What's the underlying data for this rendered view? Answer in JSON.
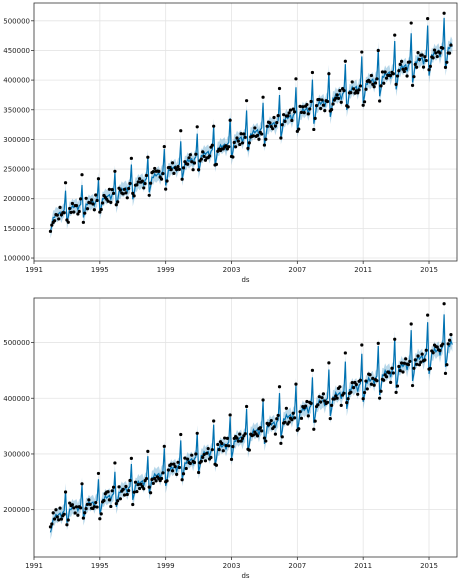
{
  "chart_data": [
    {
      "type": "line",
      "xlabel": "ds",
      "ylabel": "",
      "xlim": [
        1991.0,
        2016.7
      ],
      "ylim": [
        95000,
        530000
      ],
      "xticks": [
        1991,
        1995,
        1999,
        2003,
        2007,
        2011,
        2015
      ],
      "xtick_labels": [
        "1991",
        "1995",
        "1999",
        "2003",
        "2007",
        "2011",
        "2015"
      ],
      "yticks": [
        100000,
        150000,
        200000,
        250000,
        300000,
        350000,
        400000,
        450000,
        500000
      ],
      "ytick_labels": [
        "100000",
        "150000",
        "200000",
        "250000",
        "300000",
        "350000",
        "400000",
        "450000",
        "500000"
      ],
      "grid": true,
      "trend": {
        "start_year": 1992.0,
        "start_value": 160000,
        "end_year": 2016.4,
        "end_value": 455000,
        "early_bump": 8000
      },
      "seasonal_profile": [
        -25000,
        -15000,
        2000,
        0,
        6000,
        1000,
        3000,
        4000,
        -6000,
        2000,
        4000,
        45000
      ],
      "band_width": 12000,
      "series": [
        {
          "role": "observed",
          "marker": "dot",
          "color": "#000000"
        },
        {
          "role": "forecast",
          "marker": "line",
          "color": "#0072B2"
        },
        {
          "role": "uncertainty",
          "marker": "band",
          "color": "#0072B2"
        }
      ]
    },
    {
      "type": "line",
      "xlabel": "ds",
      "ylabel": "",
      "xlim": [
        1991.0,
        2016.7
      ],
      "ylim": [
        115000,
        580000
      ],
      "xticks": [
        1991,
        1995,
        1999,
        2003,
        2007,
        2011,
        2015
      ],
      "xtick_labels": [
        "1991",
        "1995",
        "1999",
        "2003",
        "2007",
        "2011",
        "2015"
      ],
      "yticks": [
        200000,
        300000,
        400000,
        500000
      ],
      "ytick_labels": [
        "200000",
        "300000",
        "400000",
        "500000"
      ],
      "grid": true,
      "trend": {
        "start_year": 1992.0,
        "start_value": 175000,
        "end_year": 2016.4,
        "end_value": 495000,
        "early_bump": 9000
      },
      "seasonal_profile": [
        -27000,
        -17000,
        2000,
        0,
        7000,
        1000,
        3000,
        4000,
        -7000,
        2000,
        4000,
        50000
      ],
      "band_width": 13000,
      "series": [
        {
          "role": "observed",
          "marker": "dot",
          "color": "#000000"
        },
        {
          "role": "forecast",
          "marker": "line",
          "color": "#0072B2"
        },
        {
          "role": "uncertainty",
          "marker": "band",
          "color": "#0072B2"
        }
      ]
    }
  ]
}
